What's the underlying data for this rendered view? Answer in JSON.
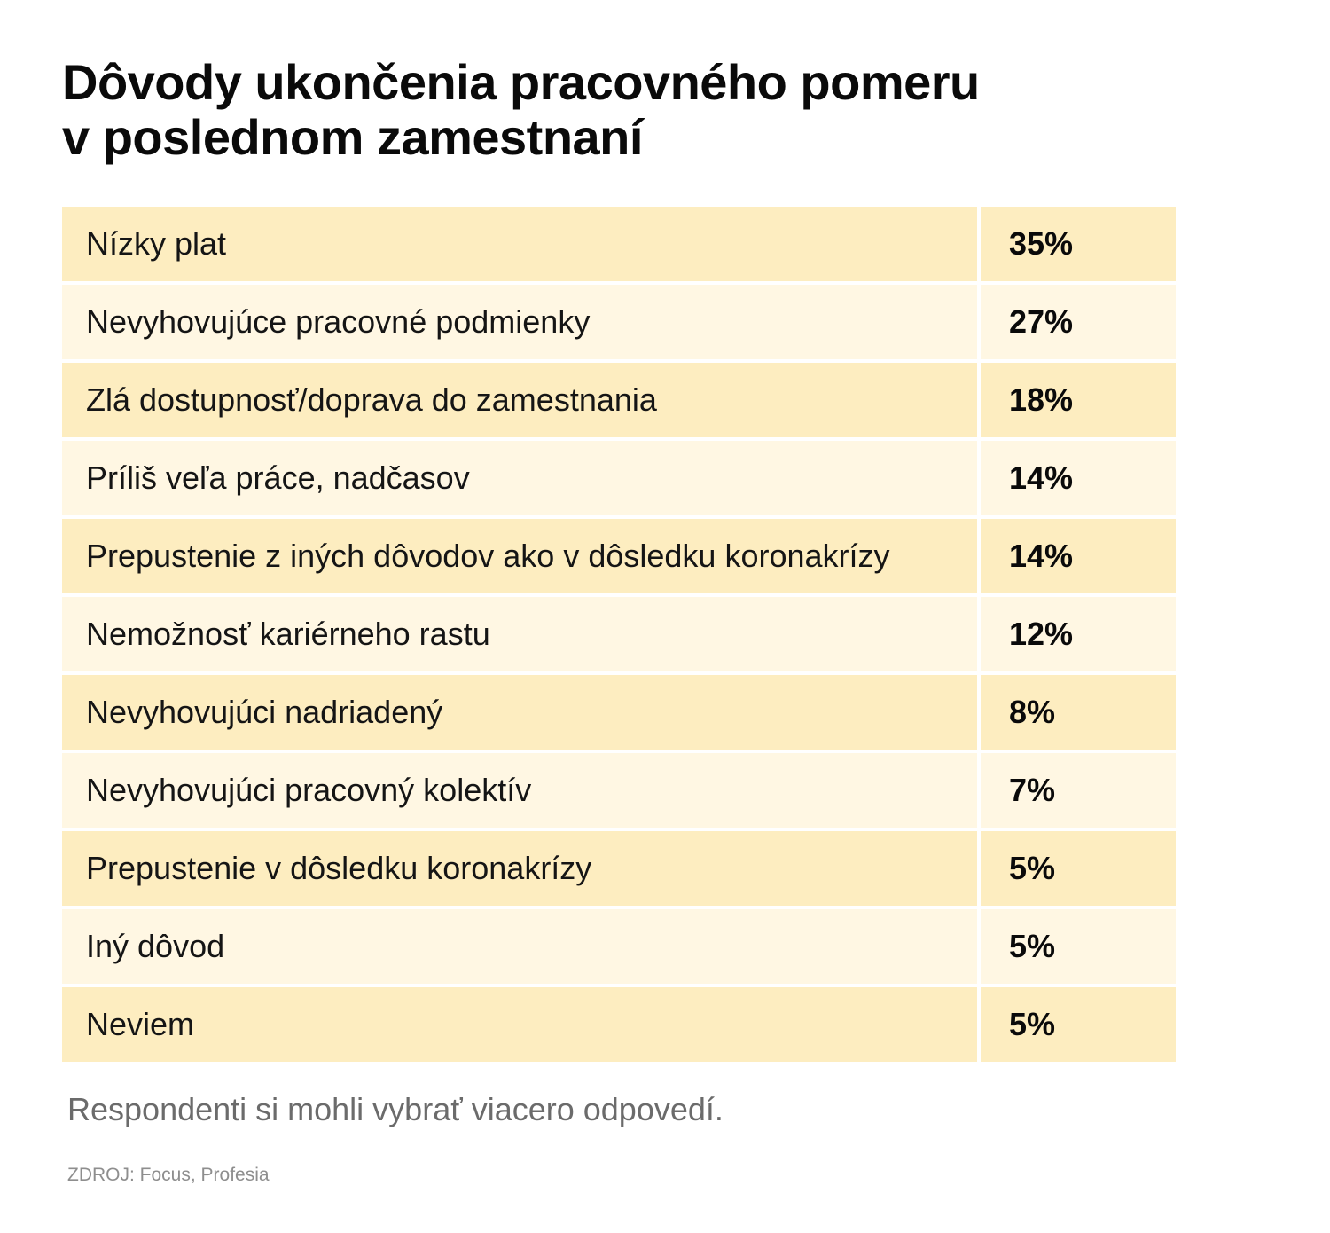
{
  "title": {
    "line1": "Dôvody ukončenia pracovného pomeru",
    "line2": "v poslednom zamestnaní"
  },
  "note": "Respondenti si mohli vybrať viacero odpovedí.",
  "source": "ZDROJ: Focus, Profesia",
  "colors": {
    "row_dark": "#fdedc0",
    "row_light": "#fff7e3",
    "text": "#151515",
    "note": "#6b6b6b",
    "source": "#8e8e8e"
  },
  "chart_data": {
    "type": "table",
    "title": "Dôvody ukončenia pracovného pomeru v poslednom zamestnaní",
    "unit": "%",
    "categories": [
      "Nízky plat",
      "Nevyhovujúce pracovné podmienky",
      "Zlá dostupnosť/doprava do zamestnania",
      "Príliš veľa práce, nadčasov",
      "Prepustenie z iných dôvodov ako v dôsledku koronakrízy",
      "Nemožnosť kariérneho rastu",
      "Nevyhovujúci nadriadený",
      "Nevyhovujúci pracovný kolektív",
      "Prepustenie v dôsledku koronakrízy",
      "Iný dôvod",
      "Neviem"
    ],
    "values": [
      35,
      27,
      18,
      14,
      14,
      12,
      8,
      7,
      5,
      5,
      5
    ],
    "labels": [
      "35%",
      "27%",
      "18%",
      "14%",
      "14%",
      "12%",
      "8%",
      "7%",
      "5%",
      "5%",
      "5%"
    ]
  }
}
